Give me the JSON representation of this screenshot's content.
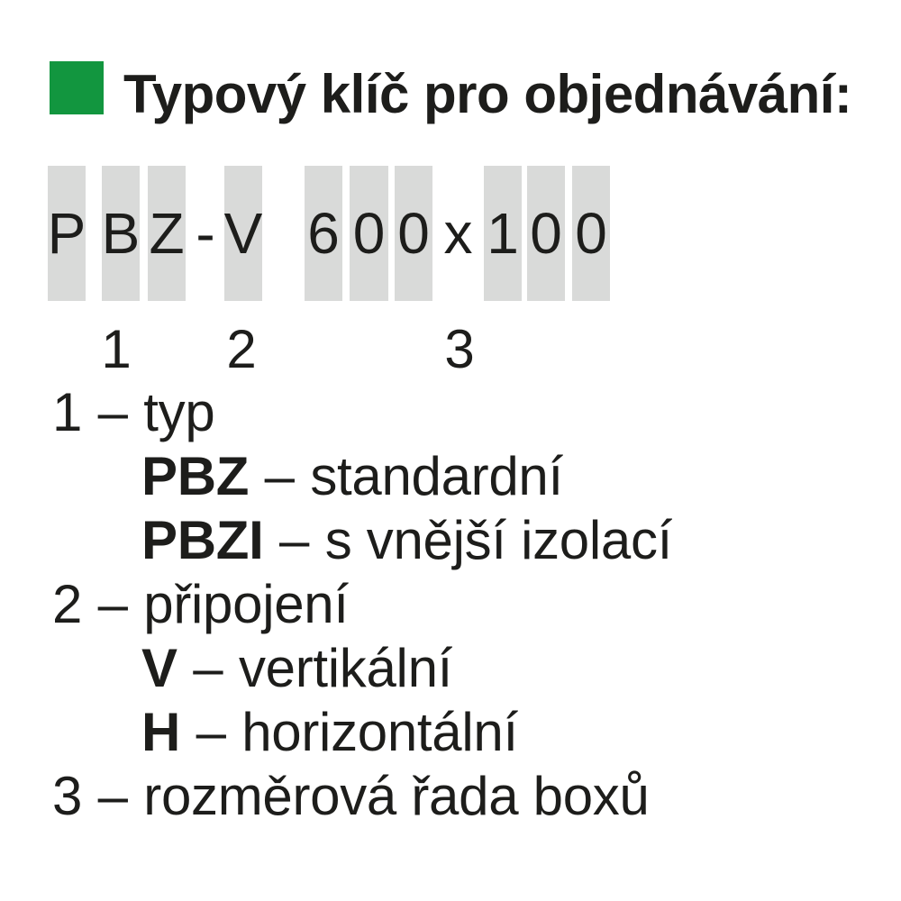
{
  "header": {
    "title": "Typový klíč pro objednávání:",
    "bullet_color": "#12963f"
  },
  "code_row": {
    "cells": [
      {
        "char": "P",
        "bar": true
      },
      {
        "char": "B",
        "bar": true
      },
      {
        "char": "Z",
        "bar": true
      },
      {
        "char": "-",
        "bar": false
      },
      {
        "char": "V",
        "bar": true
      },
      {
        "char": "6",
        "bar": true
      },
      {
        "char": "0",
        "bar": true
      },
      {
        "char": "0",
        "bar": true
      },
      {
        "char": "x",
        "bar": false
      },
      {
        "char": "1",
        "bar": true
      },
      {
        "char": "0",
        "bar": true
      },
      {
        "char": "0",
        "bar": true
      }
    ]
  },
  "position_markers": [
    {
      "label": "1"
    },
    {
      "label": "2"
    },
    {
      "label": "3"
    }
  ],
  "legend": {
    "items": [
      {
        "lead": "1",
        "separator": "–",
        "description": "typ",
        "indent": false,
        "lead_bold": false
      },
      {
        "lead": "PBZ",
        "separator": "–",
        "description": "standardní",
        "indent": true,
        "lead_bold": true
      },
      {
        "lead": "PBZI",
        "separator": "–",
        "description": "s vnější izolací",
        "indent": true,
        "lead_bold": true
      },
      {
        "lead": "2",
        "separator": "–",
        "description": "připojení",
        "indent": false,
        "lead_bold": false
      },
      {
        "lead": "V",
        "separator": "–",
        "description": "vertikální",
        "indent": true,
        "lead_bold": true
      },
      {
        "lead": "H",
        "separator": "–",
        "description": "horizontální",
        "indent": true,
        "lead_bold": true
      },
      {
        "lead": "3",
        "separator": "–",
        "description": "rozměrová řada boxů",
        "indent": false,
        "lead_bold": false
      }
    ]
  },
  "colors": {
    "bar_background": "#d9dad9",
    "text": "#1d1d1b",
    "bullet_green": "#12963f"
  }
}
